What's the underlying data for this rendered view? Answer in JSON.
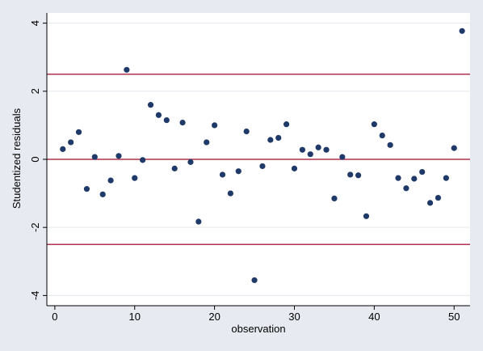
{
  "chart_data": {
    "type": "scatter",
    "title": "",
    "xlabel": "observation",
    "ylabel": "Studentized residuals",
    "xlim": [
      -1,
      52
    ],
    "ylim": [
      -4.3,
      4.3
    ],
    "xticks": [
      0,
      10,
      20,
      30,
      40,
      50
    ],
    "yticks": [
      -4,
      -2,
      0,
      2,
      4
    ],
    "grid": "horizontal",
    "reference_lines": [
      2.5,
      0,
      -2.5
    ],
    "colors": {
      "points": "#1f3a68",
      "reference_lines": "#b0334f",
      "background": "#e8eaf2",
      "plot_area": "#ffffff",
      "grid": "#e3e6ee"
    },
    "points": [
      {
        "x": 1,
        "y": 0.3
      },
      {
        "x": 2,
        "y": 0.5
      },
      {
        "x": 3,
        "y": 0.8
      },
      {
        "x": 4,
        "y": -0.87
      },
      {
        "x": 5,
        "y": 0.07
      },
      {
        "x": 6,
        "y": -1.03
      },
      {
        "x": 7,
        "y": -0.62
      },
      {
        "x": 8,
        "y": 0.1
      },
      {
        "x": 9,
        "y": 2.63
      },
      {
        "x": 10,
        "y": -0.55
      },
      {
        "x": 11,
        "y": -0.02
      },
      {
        "x": 12,
        "y": 1.6
      },
      {
        "x": 13,
        "y": 1.3
      },
      {
        "x": 14,
        "y": 1.15
      },
      {
        "x": 15,
        "y": -0.27
      },
      {
        "x": 16,
        "y": 1.08
      },
      {
        "x": 17,
        "y": -0.08
      },
      {
        "x": 18,
        "y": -1.83
      },
      {
        "x": 19,
        "y": 0.5
      },
      {
        "x": 20,
        "y": 1.0
      },
      {
        "x": 21,
        "y": -0.45
      },
      {
        "x": 22,
        "y": -1.0
      },
      {
        "x": 23,
        "y": -0.35
      },
      {
        "x": 24,
        "y": 0.82
      },
      {
        "x": 25,
        "y": -3.55
      },
      {
        "x": 26,
        "y": -0.2
      },
      {
        "x": 27,
        "y": 0.57
      },
      {
        "x": 28,
        "y": 0.63
      },
      {
        "x": 29,
        "y": 1.03
      },
      {
        "x": 30,
        "y": -0.27
      },
      {
        "x": 31,
        "y": 0.28
      },
      {
        "x": 32,
        "y": 0.15
      },
      {
        "x": 33,
        "y": 0.35
      },
      {
        "x": 34,
        "y": 0.28
      },
      {
        "x": 35,
        "y": -1.15
      },
      {
        "x": 36,
        "y": 0.07
      },
      {
        "x": 37,
        "y": -0.45
      },
      {
        "x": 38,
        "y": -0.47
      },
      {
        "x": 39,
        "y": -1.67
      },
      {
        "x": 40,
        "y": 1.03
      },
      {
        "x": 41,
        "y": 0.7
      },
      {
        "x": 42,
        "y": 0.42
      },
      {
        "x": 43,
        "y": -0.55
      },
      {
        "x": 44,
        "y": -0.85
      },
      {
        "x": 45,
        "y": -0.57
      },
      {
        "x": 46,
        "y": -0.37
      },
      {
        "x": 47,
        "y": -1.28
      },
      {
        "x": 48,
        "y": -1.13
      },
      {
        "x": 49,
        "y": -0.55
      },
      {
        "x": 50,
        "y": 0.33
      },
      {
        "x": 51,
        "y": 3.77
      }
    ]
  }
}
